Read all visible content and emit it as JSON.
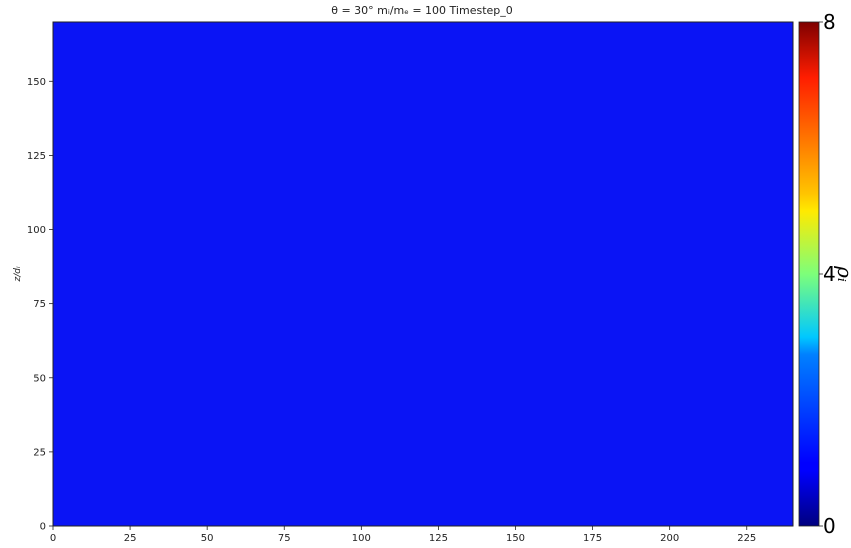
{
  "chart_data": {
    "type": "heatmap",
    "title": "θ = 30°  mᵢ/mₑ = 100  Timestep_0",
    "xlabel": "",
    "ylabel": "z/dᵢ",
    "xlim": [
      0,
      240
    ],
    "ylim": [
      0,
      170
    ],
    "xticks": [
      0,
      25,
      50,
      75,
      100,
      125,
      150,
      175,
      200,
      225
    ],
    "yticks": [
      0,
      25,
      50,
      75,
      100,
      125,
      150
    ],
    "field_value": 1.0,
    "field_color": "#0a14f5",
    "colorbar": {
      "label": "ρᵢ",
      "range": [
        0,
        8
      ],
      "ticks": [
        0,
        4,
        8
      ],
      "colormap": "jet"
    },
    "grid": false
  }
}
